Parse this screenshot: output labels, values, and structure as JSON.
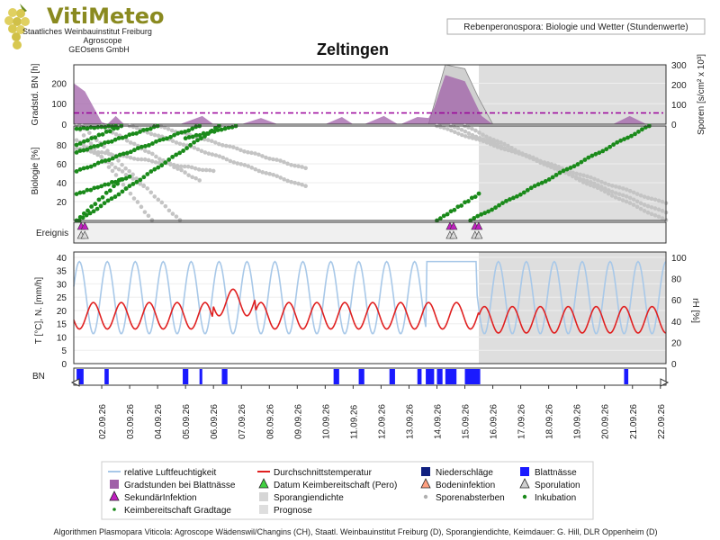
{
  "header": {
    "logo_text": "VitiMeteo",
    "institutions": [
      "Staatliches Weinbauinstitut Freiburg",
      "Agroscope",
      "GEOsens GmbH"
    ],
    "subtitle_box": "Rebenperonospora: Biologie und Wetter (Stundenwerte)"
  },
  "colors": {
    "purple": "#a060a8",
    "green": "#1a8a1a",
    "red": "#e02020",
    "lightblue": "#a8c8e8",
    "blue": "#1a1aff",
    "gray": "#c8c8c8",
    "forecast_bg": "#dedede",
    "threshold_line": "#9a009a"
  },
  "chart_data": {
    "type": "line",
    "title": "Zeltingen",
    "x_dates": [
      "02.09.26",
      "03.09.26",
      "04.09.26",
      "05.09.26",
      "06.09.26",
      "07.09.26",
      "08.09.26",
      "09.09.26",
      "10.09.26",
      "11.09.26",
      "12.09.26",
      "13.09.26",
      "14.09.26",
      "15.09.26",
      "16.09.26",
      "17.09.26",
      "18.09.26",
      "19.09.26",
      "20.09.26",
      "21.09.26",
      "22.09.26"
    ],
    "x_range_days": [
      0,
      21.2
    ],
    "forecast_start_day": 14.5,
    "panels": {
      "gradstunden": {
        "ylabel_left": "Gradstd. BN [h]",
        "ylabel_right": "Sporen [s/cm² x 10³]",
        "yticks_left": [
          0,
          100,
          200
        ],
        "yticks_right": [
          0,
          100,
          200,
          300
        ],
        "ylim_left": [
          0,
          290
        ],
        "ylim_right": [
          0,
          300
        ],
        "threshold": 55,
        "gradstunden_series": [
          [
            0,
            200
          ],
          [
            0.4,
            160
          ],
          [
            1,
            10
          ],
          [
            1.2,
            0
          ],
          [
            1.5,
            40
          ],
          [
            1.8,
            0
          ],
          [
            3.8,
            0
          ],
          [
            4.6,
            40
          ],
          [
            5,
            0
          ],
          [
            6,
            0
          ],
          [
            6.7,
            30
          ],
          [
            7.3,
            0
          ],
          [
            9,
            0
          ],
          [
            9.6,
            35
          ],
          [
            10,
            0
          ],
          [
            10.4,
            0
          ],
          [
            11.1,
            40
          ],
          [
            11.6,
            0
          ],
          [
            11.7,
            0
          ],
          [
            12.3,
            35
          ],
          [
            12.7,
            30
          ],
          [
            12.9,
            80
          ],
          [
            13.3,
            240
          ],
          [
            14,
            210
          ],
          [
            14.6,
            40
          ],
          [
            15,
            0
          ],
          [
            19.3,
            0
          ],
          [
            19.9,
            40
          ],
          [
            20.5,
            0
          ]
        ],
        "sporangia_series": [
          [
            12.7,
            0
          ],
          [
            13.3,
            300
          ],
          [
            14,
            280
          ],
          [
            14.5,
            130
          ],
          [
            15,
            0
          ]
        ]
      },
      "biologie": {
        "ylabel": "Biologie [%]",
        "yticks": [
          20,
          40,
          60,
          80
        ],
        "ylim": [
          0,
          100
        ],
        "inkubation_curves": [
          [
            [
              0.1,
              0
            ],
            [
              1.7,
              43
            ]
          ],
          [
            [
              0.1,
              28
            ],
            [
              2.0,
              46
            ]
          ],
          [
            [
              0.1,
              52
            ],
            [
              4.5,
              100
            ]
          ],
          [
            [
              0.1,
              72
            ],
            [
              3.0,
              100
            ]
          ],
          [
            [
              0.1,
              80
            ],
            [
              1.7,
              100
            ]
          ],
          [
            [
              0.1,
              97
            ],
            [
              1.5,
              100
            ]
          ],
          [
            [
              0.2,
              0
            ],
            [
              5.2,
              100
            ]
          ],
          [
            [
              4.0,
              87
            ],
            [
              5.8,
              100
            ]
          ],
          [
            [
              13.0,
              0
            ],
            [
              14.5,
              28
            ]
          ],
          [
            [
              14.2,
              0
            ],
            [
              20.6,
              100
            ]
          ]
        ],
        "sporenabsterben_curves": [
          [
            [
              0.1,
              100
            ],
            [
              2.8,
              0
            ]
          ],
          [
            [
              0.1,
              85
            ],
            [
              2.5,
              36
            ]
          ],
          [
            [
              0.1,
              76
            ],
            [
              5.0,
              52
            ]
          ],
          [
            [
              0.3,
              100
            ],
            [
              3.8,
              0
            ]
          ],
          [
            [
              1.0,
              100
            ],
            [
              4.5,
              42
            ]
          ],
          [
            [
              2.0,
              100
            ],
            [
              8.3,
              36
            ]
          ],
          [
            [
              3.0,
              100
            ],
            [
              8.3,
              55
            ]
          ],
          [
            [
              13.0,
              100
            ],
            [
              21.2,
              18
            ]
          ],
          [
            [
              13.5,
              100
            ],
            [
              21.2,
              8
            ]
          ],
          [
            [
              14.0,
              100
            ],
            [
              21.2,
              0
            ]
          ]
        ]
      },
      "ereignis": {
        "label": "Ereignis",
        "groups": [
          0.2,
          13.4,
          14.3
        ]
      },
      "wetter": {
        "ylabel_left": "T [°C], N. [mm/h]",
        "ylabel_right": "rH [%]",
        "yticks_left": [
          0,
          5,
          10,
          15,
          20,
          25,
          30,
          35,
          40
        ],
        "yticks_right": [
          0,
          20,
          40,
          60,
          80,
          100
        ],
        "ylim_left": [
          0,
          42
        ],
        "ylim_right": [
          0,
          105
        ]
      },
      "bn": {
        "label": "BN",
        "blocks": [
          [
            0.1,
            0.35
          ],
          [
            1.1,
            1.25
          ],
          [
            3.9,
            4.1
          ],
          [
            4.5,
            4.6
          ],
          [
            5.3,
            5.5
          ],
          [
            9.3,
            9.5
          ],
          [
            10.2,
            10.4
          ],
          [
            11.3,
            11.5
          ],
          [
            12.3,
            12.45
          ],
          [
            12.6,
            12.9
          ],
          [
            13,
            13.2
          ],
          [
            13.3,
            13.7
          ],
          [
            14,
            14.55
          ],
          [
            19.7,
            19.85
          ]
        ]
      }
    },
    "legend": [
      {
        "label": "relative Luftfeuchtigkeit",
        "symbol": "line-lightblue"
      },
      {
        "label": "Durchschnittstemperatur",
        "symbol": "line-red"
      },
      {
        "label": "Niederschläge",
        "symbol": "square-navy"
      },
      {
        "label": "Blattnässe",
        "symbol": "square-blue"
      },
      {
        "label": "Gradstunden bei Blattnässe",
        "symbol": "square-purple"
      },
      {
        "label": "Datum Keimbereitschaft (Pero)",
        "symbol": "triangle-green"
      },
      {
        "label": "Bodeninfektion",
        "symbol": "triangle-orange"
      },
      {
        "label": "Sporulation",
        "symbol": "triangle-gray"
      },
      {
        "label": "SekundärInfektion",
        "symbol": "triangle-magenta"
      },
      {
        "label": "Sporangiendichte",
        "symbol": "square-lightgray"
      },
      {
        "label": "Sporenabsterben",
        "symbol": "dot-gray"
      },
      {
        "label": "Inkubation",
        "symbol": "dot-green"
      },
      {
        "label": "Keimbereitschaft Gradtage",
        "symbol": "dot-green-small"
      },
      {
        "label": "Prognose",
        "symbol": "square-prognose"
      }
    ]
  },
  "footer": {
    "text": "Algorithmen Plasmopara Viticola: Agroscope Wädenswil/Changins (CH), Staatl. Weinbauinstitut Freiburg (D), Sporangiendichte, Keimdauer: G. Hill, DLR Oppenheim (D)"
  }
}
